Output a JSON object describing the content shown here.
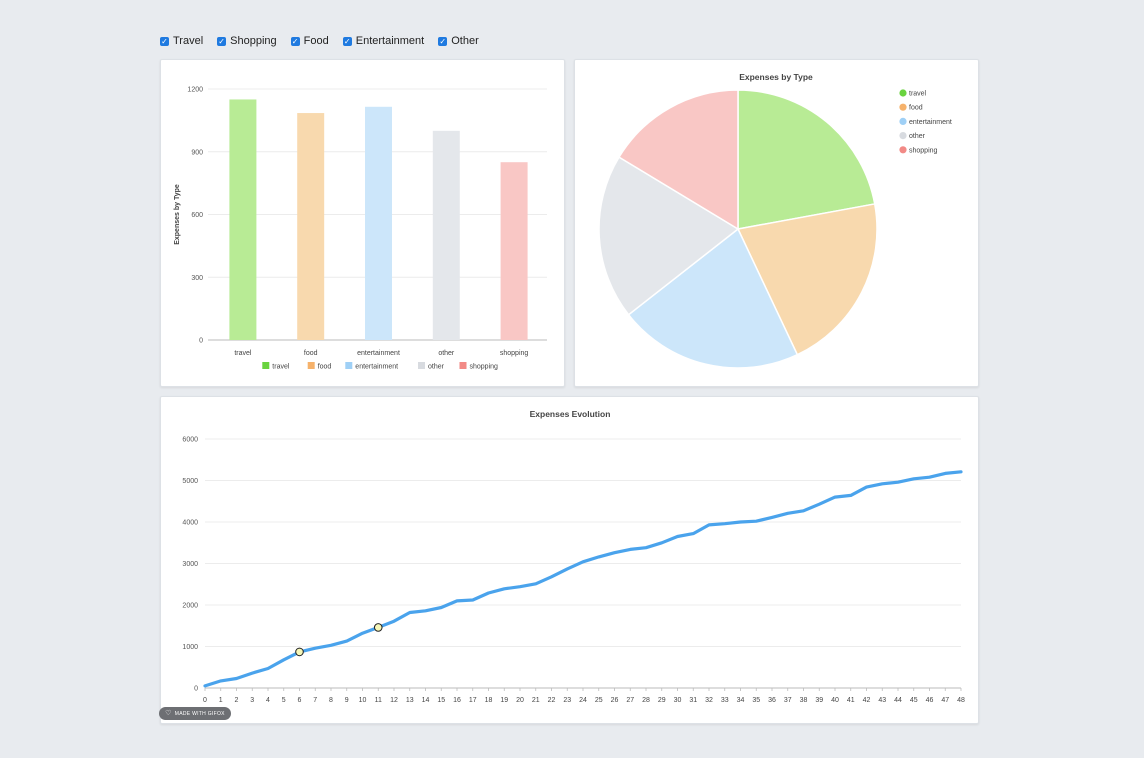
{
  "filters": [
    {
      "label": "Travel",
      "checked": true
    },
    {
      "label": "Shopping",
      "checked": true
    },
    {
      "label": "Food",
      "checked": true
    },
    {
      "label": "Entertainment",
      "checked": true
    },
    {
      "label": "Other",
      "checked": true
    }
  ],
  "colors": {
    "travel": {
      "fill": "#b8eb95",
      "solid": "#6ad33f"
    },
    "food": {
      "fill": "#f8d9ae",
      "solid": "#f6b26b"
    },
    "entertainment": {
      "fill": "#cce6fa",
      "solid": "#9fd0f6"
    },
    "other": {
      "fill": "#e4e7eb",
      "solid": "#d8dbe0"
    },
    "shopping": {
      "fill": "#f9c7c5",
      "solid": "#f28a86"
    },
    "line": "#4aa3ec"
  },
  "badge": {
    "label": "MADE WITH GIFOX"
  },
  "chart_data": [
    {
      "type": "bar",
      "ylabel": "Expenses by Type",
      "categories": [
        "travel",
        "food",
        "entertainment",
        "other",
        "shopping"
      ],
      "values": [
        1150,
        1085,
        1115,
        1000,
        850
      ],
      "ylim": [
        0,
        1200
      ],
      "yticks": [
        0,
        300,
        600,
        900,
        1200
      ],
      "legend": [
        "travel",
        "food",
        "entertainment",
        "other",
        "shopping"
      ],
      "legend_position": "bottom",
      "grid": true
    },
    {
      "type": "pie",
      "title": "Expenses by Type",
      "labels": [
        "travel",
        "food",
        "entertainment",
        "other",
        "shopping"
      ],
      "values": [
        1150,
        1085,
        1115,
        1000,
        850
      ],
      "legend_position": "top-right"
    },
    {
      "type": "line",
      "title": "Expenses Evolution",
      "x": [
        0,
        1,
        2,
        3,
        4,
        5,
        6,
        7,
        8,
        9,
        10,
        11,
        12,
        13,
        14,
        15,
        16,
        17,
        18,
        19,
        20,
        21,
        22,
        23,
        24,
        25,
        26,
        27,
        28,
        29,
        30,
        31,
        32,
        33,
        34,
        35,
        36,
        37,
        38,
        39,
        40,
        41,
        42,
        43,
        44,
        45,
        46,
        47,
        48
      ],
      "values": [
        50,
        170,
        230,
        360,
        470,
        680,
        870,
        960,
        1030,
        1130,
        1320,
        1460,
        1610,
        1820,
        1860,
        1940,
        2100,
        2120,
        2290,
        2390,
        2440,
        2510,
        2680,
        2870,
        3040,
        3160,
        3260,
        3340,
        3380,
        3500,
        3650,
        3720,
        3930,
        3960,
        4000,
        4020,
        4110,
        4210,
        4270,
        4430,
        4600,
        4640,
        4840,
        4920,
        4960,
        5040,
        5080,
        5170,
        5210
      ],
      "ylim": [
        0,
        6000
      ],
      "yticks": [
        0,
        1000,
        2000,
        3000,
        4000,
        5000,
        6000
      ],
      "highlighted_points": [
        6,
        11
      ],
      "grid": true
    }
  ]
}
